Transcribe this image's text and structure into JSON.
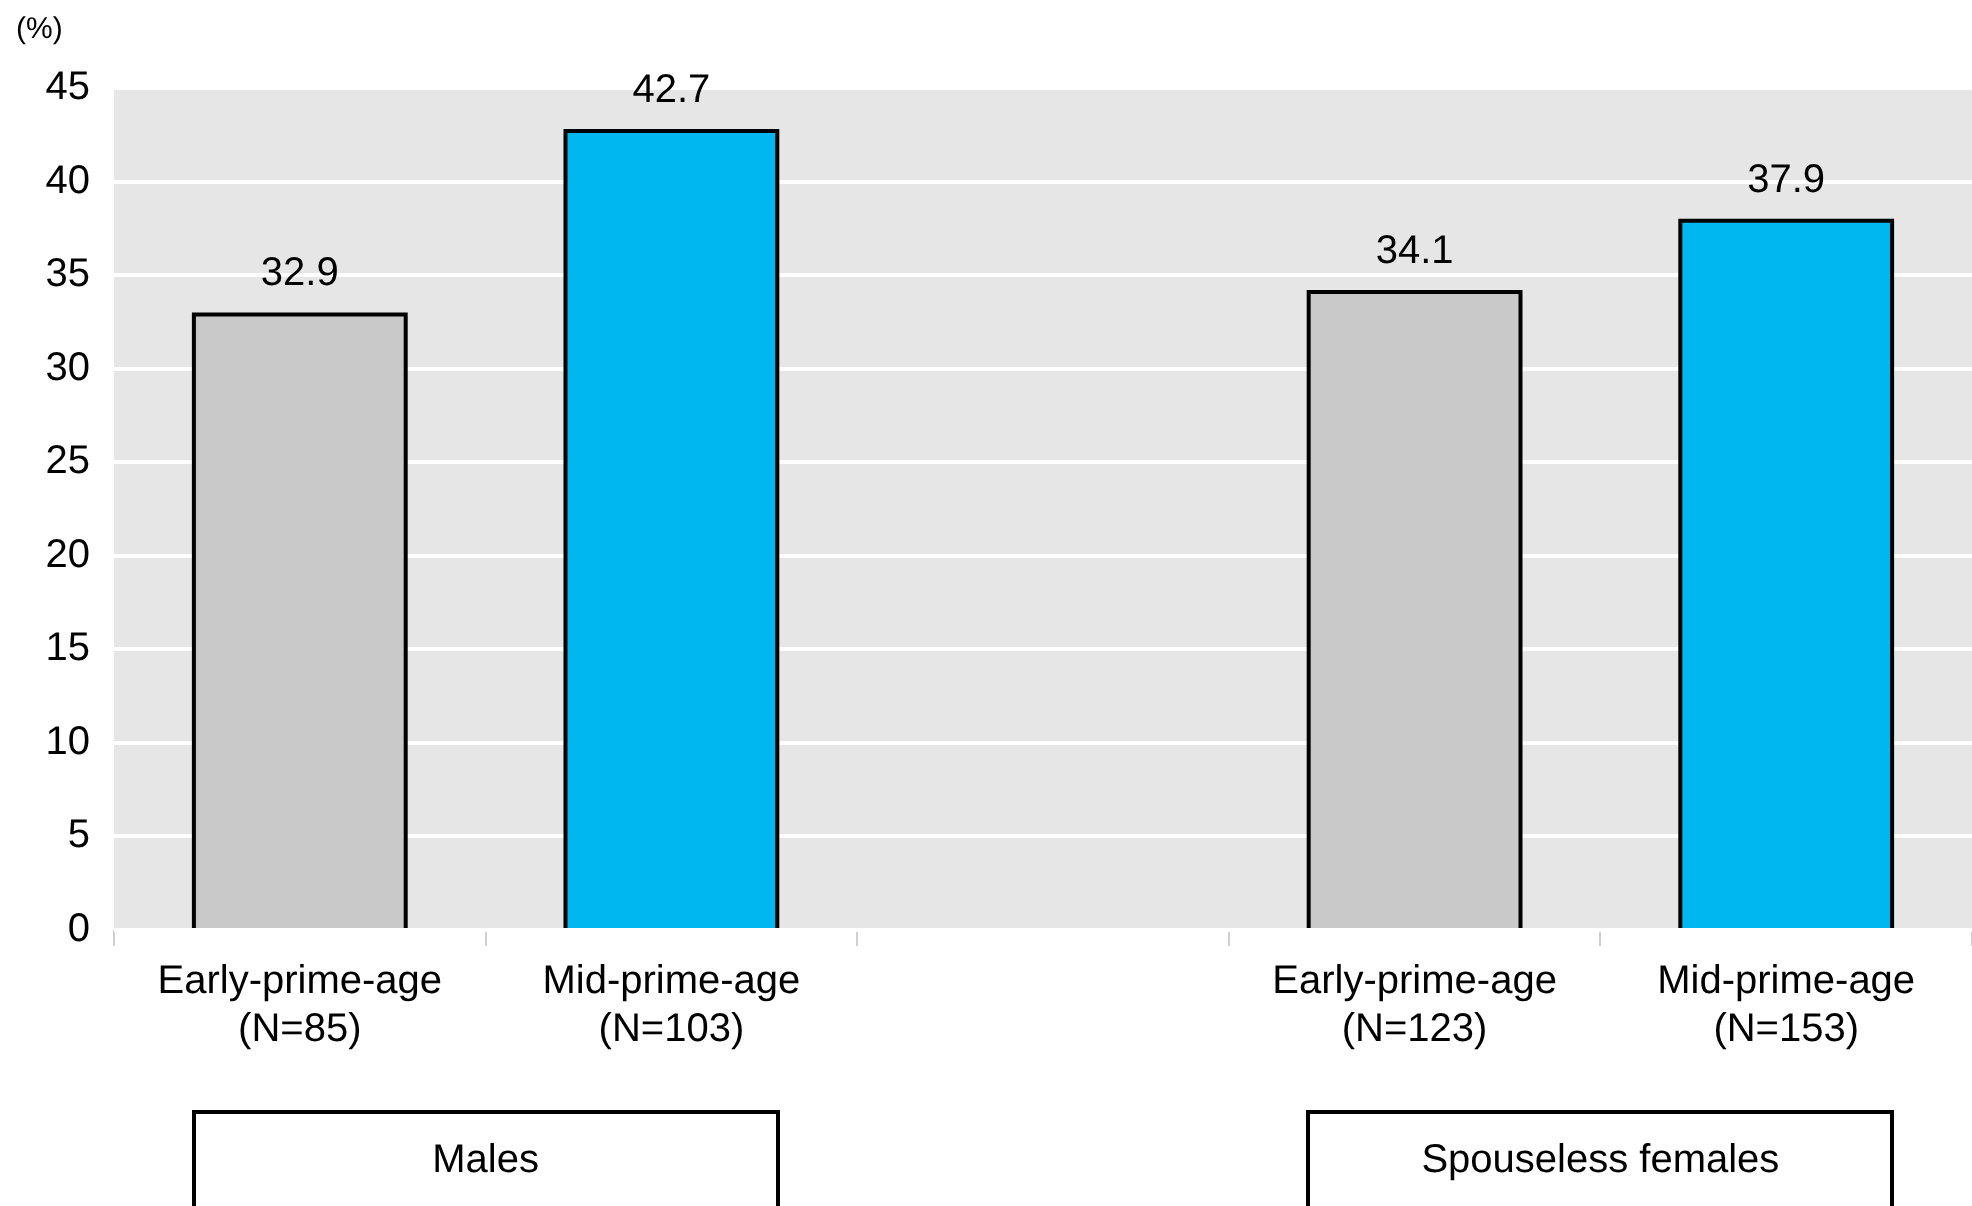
{
  "chart_data": {
    "type": "bar",
    "ylabel": "(%)",
    "categories": [
      "Early-prime-age\n(N=85)",
      "Mid-prime-age\n(N=103)",
      null,
      "Early-prime-age\n(N=123)",
      "Mid-prime-age\n(N=153)"
    ],
    "values": [
      32.9,
      42.7,
      null,
      34.1,
      37.9
    ],
    "colors": [
      "#c8c9c8",
      "#00b8ef",
      "#c8c9c8",
      "#c8c9c8",
      "#00b8ef"
    ],
    "ylim": [
      0,
      45
    ],
    "yticks": [
      0,
      5,
      10,
      15,
      20,
      25,
      30,
      35,
      40,
      45
    ],
    "grid": "y",
    "legend": false,
    "data_labels": true,
    "annotations": [
      "Males",
      "Spouseless females"
    ]
  }
}
